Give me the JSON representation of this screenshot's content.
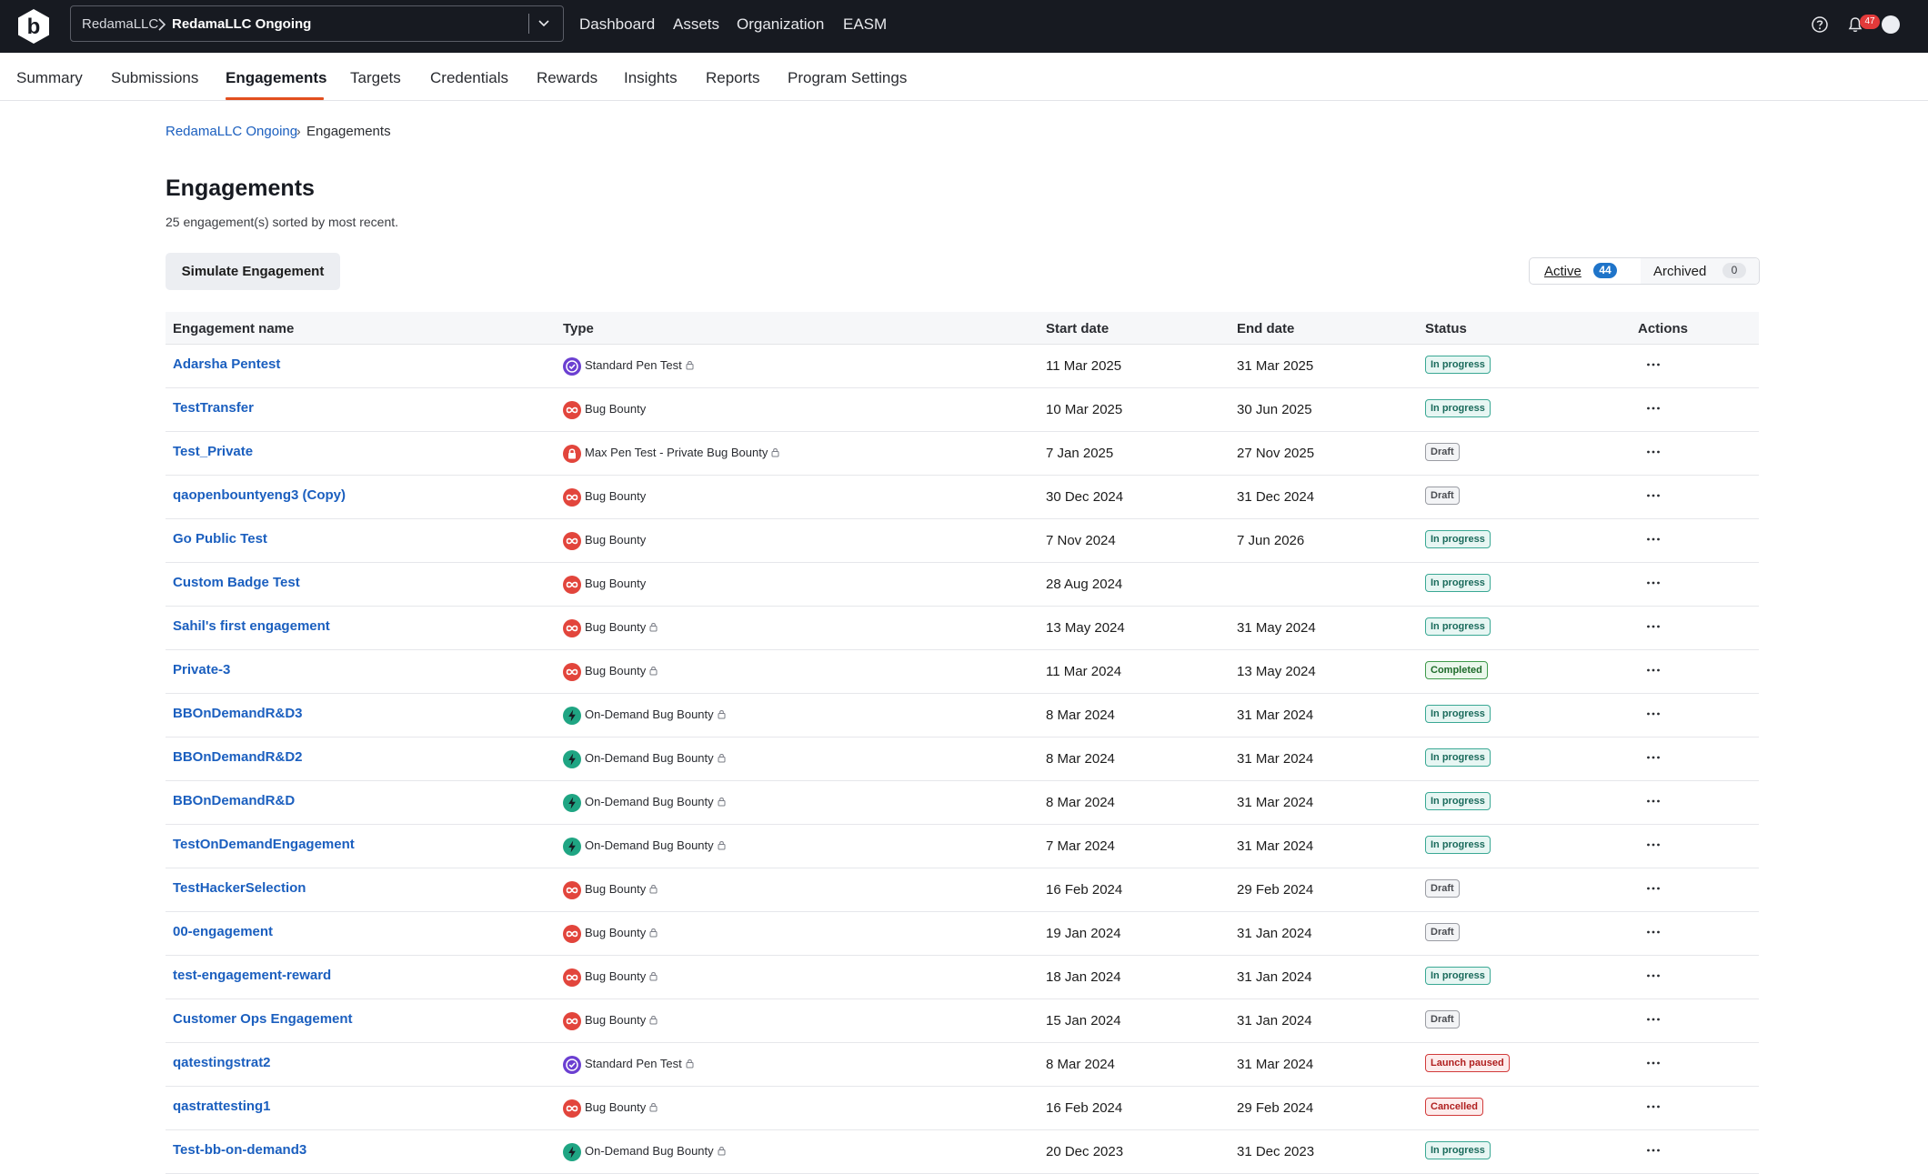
{
  "topbar": {
    "org_parent": "RedamaLLC",
    "org_current": "RedamaLLC Ongoing",
    "nav": [
      "Dashboard",
      "Assets",
      "Organization",
      "EASM"
    ],
    "notification_count": "47"
  },
  "tabs": [
    "Summary",
    "Submissions",
    "Engagements",
    "Targets",
    "Credentials",
    "Rewards",
    "Insights",
    "Reports",
    "Program Settings"
  ],
  "active_tab": "Engagements",
  "breadcrumb": {
    "link": "RedamaLLC Ongoing",
    "current": "Engagements"
  },
  "page": {
    "title": "Engagements",
    "subtitle": "25 engagement(s) sorted by most recent.",
    "simulate_button": "Simulate Engagement"
  },
  "filter": {
    "active_label": "Active",
    "active_count": "44",
    "archived_label": "Archived",
    "archived_count": "0"
  },
  "table": {
    "columns": [
      "Engagement name",
      "Type",
      "Start date",
      "End date",
      "Status",
      "Actions"
    ],
    "rows": [
      {
        "name": "Adarsha Pentest",
        "type": "Standard Pen Test",
        "icon": "pentest",
        "lock": true,
        "start": "11 Mar 2025",
        "end": "31 Mar 2025",
        "status": "In progress",
        "status_kind": "in-progress"
      },
      {
        "name": "TestTransfer",
        "type": "Bug Bounty",
        "icon": "bugbounty",
        "lock": false,
        "start": "10 Mar 2025",
        "end": "30 Jun 2025",
        "status": "In progress",
        "status_kind": "in-progress"
      },
      {
        "name": "Test_Private",
        "type": "Max Pen Test - Private Bug Bounty",
        "icon": "private",
        "lock": true,
        "start": "7 Jan 2025",
        "end": "27 Nov 2025",
        "status": "Draft",
        "status_kind": "draft"
      },
      {
        "name": "qaopenbountyeng3 (Copy)",
        "type": "Bug Bounty",
        "icon": "bugbounty",
        "lock": false,
        "start": "30 Dec 2024",
        "end": "31 Dec 2024",
        "status": "Draft",
        "status_kind": "draft"
      },
      {
        "name": "Go Public Test",
        "type": "Bug Bounty",
        "icon": "bugbounty",
        "lock": false,
        "start": "7 Nov 2024",
        "end": "7 Jun 2026",
        "status": "In progress",
        "status_kind": "in-progress"
      },
      {
        "name": "Custom Badge Test",
        "type": "Bug Bounty",
        "icon": "bugbounty",
        "lock": false,
        "start": "28 Aug 2024",
        "end": "",
        "status": "In progress",
        "status_kind": "in-progress"
      },
      {
        "name": "Sahil's first engagement",
        "type": "Bug Bounty",
        "icon": "bugbounty",
        "lock": true,
        "start": "13 May 2024",
        "end": "31 May 2024",
        "status": "In progress",
        "status_kind": "in-progress"
      },
      {
        "name": "Private-3",
        "type": "Bug Bounty",
        "icon": "bugbounty",
        "lock": true,
        "start": "11 Mar 2024",
        "end": "13 May 2024",
        "status": "Completed",
        "status_kind": "completed"
      },
      {
        "name": "BBOnDemandR&D3",
        "type": "On-Demand Bug Bounty",
        "icon": "ondemand",
        "lock": true,
        "start": "8 Mar 2024",
        "end": "31 Mar 2024",
        "status": "In progress",
        "status_kind": "in-progress"
      },
      {
        "name": "BBOnDemandR&D2",
        "type": "On-Demand Bug Bounty",
        "icon": "ondemand",
        "lock": true,
        "start": "8 Mar 2024",
        "end": "31 Mar 2024",
        "status": "In progress",
        "status_kind": "in-progress"
      },
      {
        "name": "BBOnDemandR&D",
        "type": "On-Demand Bug Bounty",
        "icon": "ondemand",
        "lock": true,
        "start": "8 Mar 2024",
        "end": "31 Mar 2024",
        "status": "In progress",
        "status_kind": "in-progress"
      },
      {
        "name": "TestOnDemandEngagement",
        "type": "On-Demand Bug Bounty",
        "icon": "ondemand",
        "lock": true,
        "start": "7 Mar 2024",
        "end": "31 Mar 2024",
        "status": "In progress",
        "status_kind": "in-progress"
      },
      {
        "name": "TestHackerSelection",
        "type": "Bug Bounty",
        "icon": "bugbounty",
        "lock": true,
        "start": "16 Feb 2024",
        "end": "29 Feb 2024",
        "status": "Draft",
        "status_kind": "draft"
      },
      {
        "name": "00-engagement",
        "type": "Bug Bounty",
        "icon": "bugbounty",
        "lock": true,
        "start": "19 Jan 2024",
        "end": "31 Jan 2024",
        "status": "Draft",
        "status_kind": "draft"
      },
      {
        "name": "test-engagement-reward",
        "type": "Bug Bounty",
        "icon": "bugbounty",
        "lock": true,
        "start": "18 Jan 2024",
        "end": "31 Jan 2024",
        "status": "In progress",
        "status_kind": "in-progress"
      },
      {
        "name": "Customer Ops Engagement",
        "type": "Bug Bounty",
        "icon": "bugbounty",
        "lock": true,
        "start": "15 Jan 2024",
        "end": "31 Jan 2024",
        "status": "Draft",
        "status_kind": "draft"
      },
      {
        "name": "qatestingstrat2",
        "type": "Standard Pen Test",
        "icon": "pentest",
        "lock": true,
        "start": "8 Mar 2024",
        "end": "31 Mar 2024",
        "status": "Launch paused",
        "status_kind": "launch-paused"
      },
      {
        "name": "qastrattesting1",
        "type": "Bug Bounty",
        "icon": "bugbounty",
        "lock": true,
        "start": "16 Feb 2024",
        "end": "29 Feb 2024",
        "status": "Cancelled",
        "status_kind": "cancelled"
      },
      {
        "name": "Test-bb-on-demand3",
        "type": "On-Demand Bug Bounty",
        "icon": "ondemand",
        "lock": true,
        "start": "20 Dec 2023",
        "end": "31 Dec 2023",
        "status": "In progress",
        "status_kind": "in-progress"
      }
    ]
  },
  "colors": {
    "topbar": "#171a21",
    "link": "#1b5fbf",
    "tab_underline": "#e24f1f",
    "pentest_icon": "#6b3fd1",
    "bugbounty_icon": "#e2453c",
    "ondemand_icon": "#1fa583",
    "private_icon": "#e2453c"
  }
}
